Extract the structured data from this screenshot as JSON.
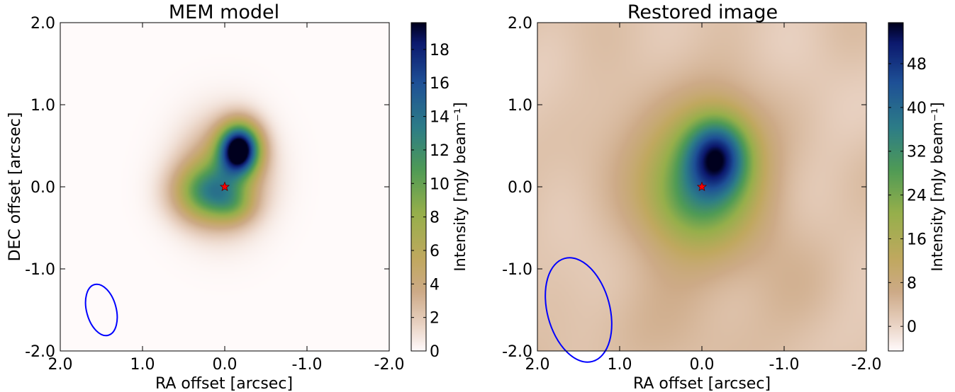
{
  "chart_data": [
    {
      "type": "heatmap",
      "title": "MEM model",
      "xlabel": "RA offset [arcsec]",
      "ylabel": "DEC offset [arcsec]",
      "x_ticks": [
        "2.0",
        "1.0",
        "0.0",
        "-1.0",
        "-2.0"
      ],
      "x_tick_values": [
        2.0,
        1.0,
        0.0,
        -1.0,
        -2.0
      ],
      "y_ticks": [
        "2.0",
        "1.0",
        "0.0",
        "-1.0",
        "-2.0"
      ],
      "y_tick_values": [
        2.0,
        1.0,
        0.0,
        -1.0,
        -2.0
      ],
      "xlim": [
        2.0,
        -2.0
      ],
      "ylim": [
        -2.0,
        2.0
      ],
      "colorbar": {
        "label": "Intensity [mJy beam⁻¹]",
        "ticks": [
          "0",
          "2",
          "4",
          "6",
          "8",
          "10",
          "12",
          "14",
          "16",
          "18"
        ],
        "tick_values": [
          0,
          2,
          4,
          6,
          8,
          10,
          12,
          14,
          16,
          18
        ],
        "range": [
          0,
          19.6
        ]
      },
      "source": {
        "name": "star-marker",
        "x": 0.0,
        "y": 0.0,
        "color": "#ff0000"
      },
      "beam": {
        "x": 1.5,
        "y": -1.5,
        "major": 0.32,
        "minor": 0.18,
        "pa_deg": 15,
        "color": "#0000ff"
      },
      "components": [
        {
          "x": -0.18,
          "y": 0.46,
          "sx": 0.17,
          "sy": 0.21,
          "amp": 19.5
        },
        {
          "x": 0.02,
          "y": 0.15,
          "sx": 0.34,
          "sy": 0.42,
          "amp": 6.0
        },
        {
          "x": 0.22,
          "y": -0.07,
          "sx": 0.28,
          "sy": 0.24,
          "amp": 8.5
        },
        {
          "x": -0.12,
          "y": -0.22,
          "sx": 0.18,
          "sy": 0.16,
          "amp": 3.5
        }
      ]
    },
    {
      "type": "heatmap",
      "title": "Restored image",
      "xlabel": "RA offset [arcsec]",
      "ylabel": "",
      "x_ticks": [
        "2.0",
        "1.0",
        "0.0",
        "-1.0",
        "-2.0"
      ],
      "x_tick_values": [
        2.0,
        1.0,
        0.0,
        -1.0,
        -2.0
      ],
      "y_ticks": [
        "2.0",
        "1.0",
        "0.0",
        "-1.0",
        "-2.0"
      ],
      "y_tick_values": [
        2.0,
        1.0,
        0.0,
        -1.0,
        -2.0
      ],
      "xlim": [
        2.0,
        -2.0
      ],
      "ylim": [
        -2.0,
        2.0
      ],
      "colorbar": {
        "label": "Intensity [mJy beam⁻¹]",
        "ticks": [
          "0",
          "8",
          "16",
          "24",
          "32",
          "40",
          "48"
        ],
        "tick_values": [
          0,
          8,
          16,
          24,
          32,
          40,
          48
        ],
        "range": [
          -4.5,
          55.5
        ]
      },
      "source": {
        "name": "star-marker",
        "x": 0.0,
        "y": 0.0,
        "color": "#ff0000"
      },
      "beam": {
        "x": 1.5,
        "y": -1.5,
        "major": 0.65,
        "minor": 0.38,
        "pa_deg": 15,
        "color": "#0000ff"
      },
      "components": [
        {
          "x": -0.19,
          "y": 0.38,
          "sx": 0.26,
          "sy": 0.32,
          "amp": 34
        },
        {
          "x": 0.0,
          "y": 0.05,
          "sx": 0.48,
          "sy": 0.6,
          "amp": 26
        },
        {
          "x": 0.15,
          "y": -0.2,
          "sx": 0.32,
          "sy": 0.3,
          "amp": 4
        }
      ],
      "background_level": 2.5
    }
  ]
}
